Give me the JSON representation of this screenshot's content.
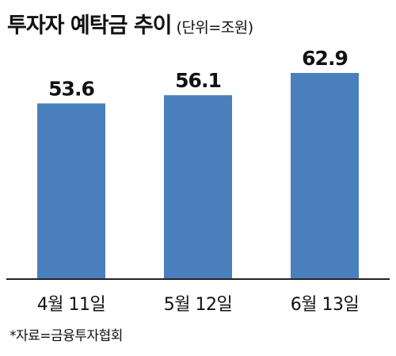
{
  "header": {
    "title": "투자자 예탁금 추이",
    "unit": "(단위=조원)"
  },
  "footer": {
    "source": "*자료=금융투자협회"
  },
  "chart_data": {
    "type": "bar",
    "title": "투자자 예탁금 추이",
    "subtitle": "(단위=조원)",
    "categories": [
      "4월 11일",
      "5월 12일",
      "6월 13일"
    ],
    "values": [
      53.6,
      56.1,
      62.9
    ],
    "value_labels": [
      "53.6",
      "56.1",
      "62.9"
    ],
    "xlabel": "",
    "ylabel": "",
    "ylim": [
      0,
      62.9
    ],
    "grid": false,
    "legend": "none",
    "colors": {
      "bar": "#4a7fbe",
      "axis": "#222222",
      "text": "#111111"
    }
  }
}
